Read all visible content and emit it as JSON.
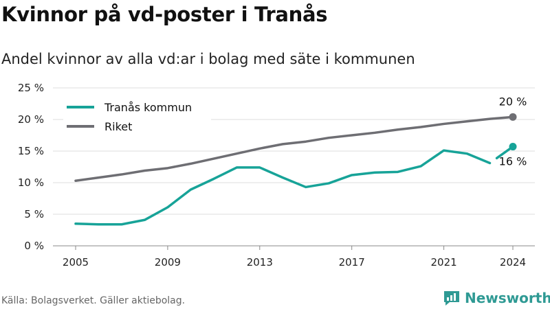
{
  "title": "Kvinnor på vd-poster i Tranås",
  "subtitle": "Andel kvinnor av alla vd:ar i bolag med säte i kommunen",
  "source": "Källa: Bolagsverket. Gäller aktiebolag.",
  "brand": {
    "name": "Newsworthy",
    "icon": "newsworthy-logo-icon",
    "color": "#2f9a94"
  },
  "chart_data": {
    "type": "line",
    "x": [
      2005,
      2006,
      2007,
      2008,
      2009,
      2010,
      2011,
      2012,
      2013,
      2014,
      2015,
      2016,
      2017,
      2018,
      2019,
      2020,
      2021,
      2022,
      2023,
      2024
    ],
    "series": [
      {
        "name": "Tranås kommun",
        "color": "#17a398",
        "values": [
          3.5,
          3.4,
          3.4,
          4.1,
          6.1,
          8.9,
          10.6,
          12.4,
          12.4,
          10.8,
          9.3,
          9.9,
          11.2,
          11.6,
          11.7,
          12.6,
          15.1,
          14.6,
          13.1,
          15.7
        ],
        "dashed_last_segment": true,
        "end_label": "16 %"
      },
      {
        "name": "Riket",
        "color": "#6e6e73",
        "values": [
          10.3,
          10.8,
          11.3,
          11.9,
          12.3,
          13.0,
          13.8,
          14.6,
          15.4,
          16.1,
          16.5,
          17.1,
          17.5,
          17.9,
          18.4,
          18.8,
          19.3,
          19.7,
          20.1,
          20.4
        ],
        "end_label": "20 %"
      }
    ],
    "x_ticks": [
      "2005",
      "2009",
      "2013",
      "2017",
      "2021",
      "2024"
    ],
    "y_ticks": [
      "0 %",
      "5 %",
      "10 %",
      "15 %",
      "20 %",
      "25 %"
    ],
    "ylim": [
      0,
      25
    ],
    "grid": true,
    "legend": "top-left"
  }
}
